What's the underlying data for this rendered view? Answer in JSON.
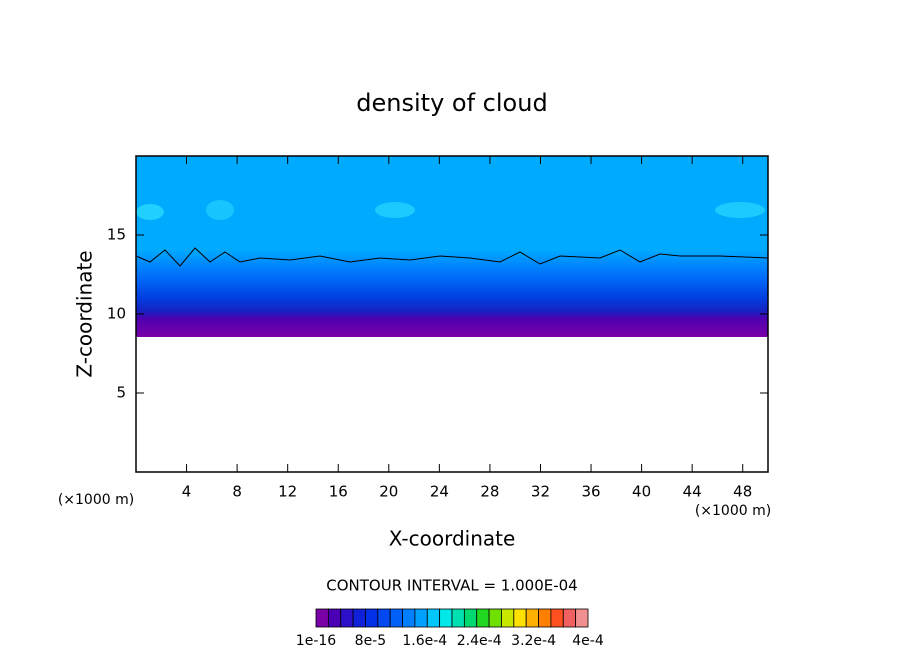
{
  "chart_data": {
    "type": "contour",
    "title": "density of cloud",
    "x_label": "X-coordinate",
    "y_label": "Z-coordinate",
    "x_unit": "(×1000 m)",
    "y_unit": "(×1000 m)",
    "xlim": [
      0,
      50
    ],
    "xticks": [
      4,
      8,
      12,
      16,
      20,
      24,
      28,
      32,
      36,
      40,
      44,
      48
    ],
    "ylim": [
      0,
      20
    ],
    "yticks": [
      5,
      10,
      15
    ],
    "contour_interval": "CONTOUR INTERVAL = 1.000E-04",
    "colorbar": {
      "lim": [
        0,
        0.0004
      ],
      "colors": [
        "#7a00a8",
        "#4a00b4",
        "#2a10c8",
        "#1020d8",
        "#0030e8",
        "#0048f0",
        "#0060f8",
        "#0080ff",
        "#00a0ff",
        "#00c8ff",
        "#00e8e8",
        "#00e0b0",
        "#00d870",
        "#20d820",
        "#70e000",
        "#c8e800",
        "#ffe000",
        "#ffb000",
        "#ff8000",
        "#ff5020",
        "#f06060",
        "#f09090"
      ],
      "ticks": [
        {
          "value": 1e-16,
          "label": "1e-16"
        },
        {
          "value": 8e-05,
          "label": "8e-5"
        },
        {
          "value": 0.00016,
          "label": "1.6e-4"
        },
        {
          "value": 0.00024,
          "label": "2.4e-4"
        },
        {
          "value": 0.00032,
          "label": "3.2e-4"
        },
        {
          "value": 0.0004,
          "label": "4e-4"
        }
      ]
    }
  }
}
